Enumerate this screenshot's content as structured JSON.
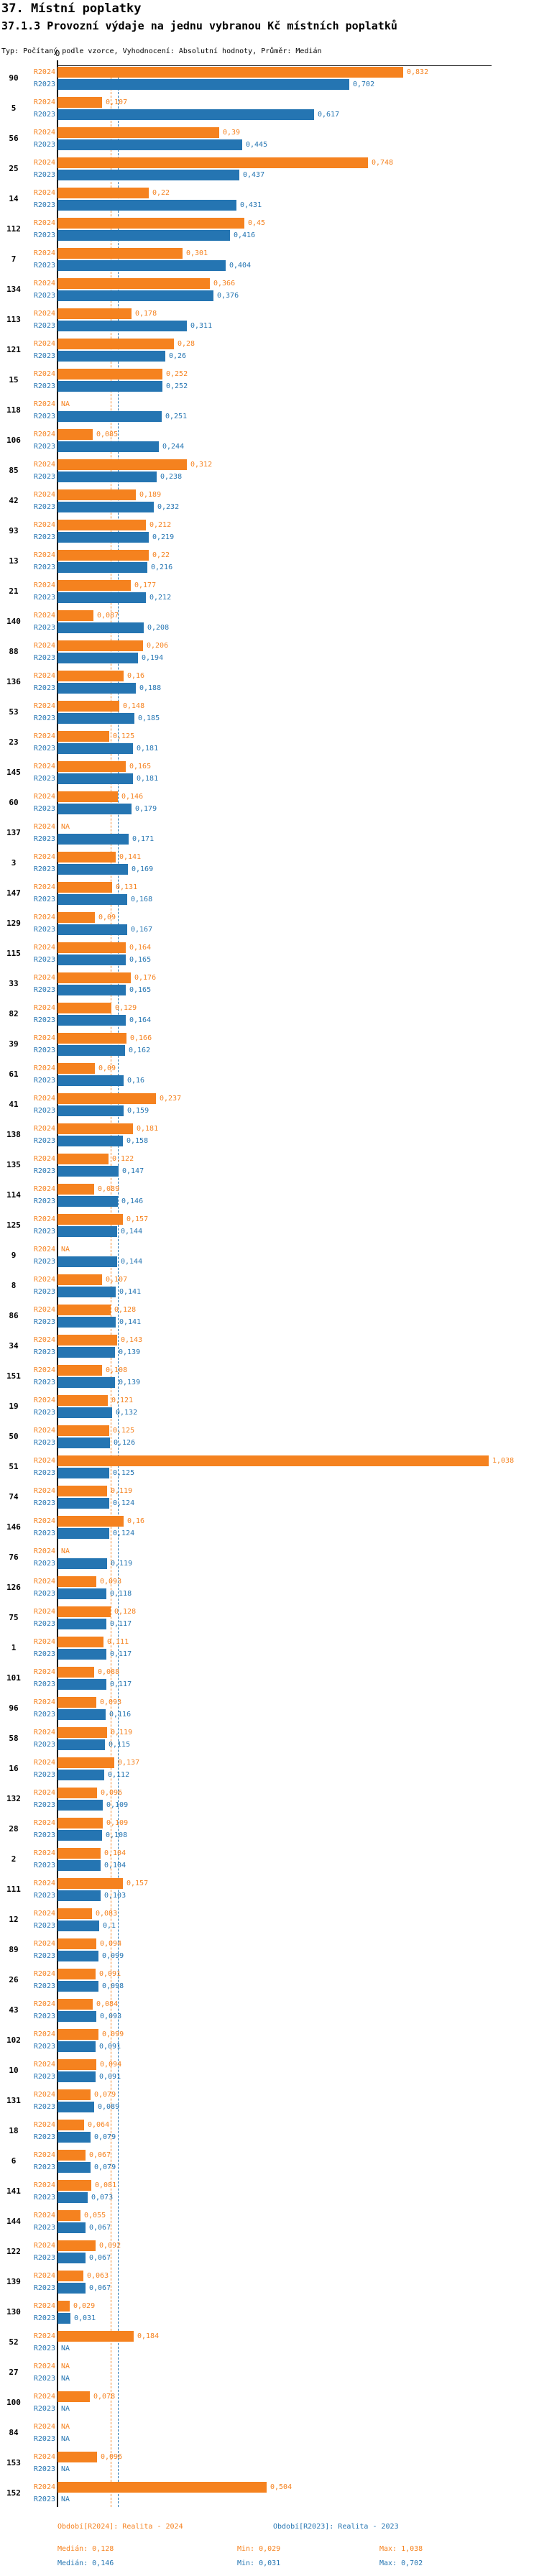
{
  "header": {
    "title": "37. Místní poplatky",
    "subtitle": "37.1.3 Provozní výdaje na jednu vybranou Kč místních poplatků",
    "meta": "Typ: Počítaný podle vzorce, Vyhodnocení: Absolutní hodnoty, Průměr: Medián"
  },
  "chart_data": {
    "type": "bar",
    "orientation": "horizontal",
    "series_labels": [
      "R2024",
      "R2023"
    ],
    "colors": {
      "R2024": "#F5821F",
      "R2023": "#2575B2"
    },
    "axis": {
      "zero_tick_label": "0",
      "xlim": [
        0,
        1.08
      ],
      "value_format": "czech-comma",
      "na_text": "NA"
    },
    "medians": {
      "R2024": 0.128,
      "R2023": 0.146
    },
    "rows": [
      {
        "id": "90",
        "R2024": "0,832",
        "R2023": "0,702"
      },
      {
        "id": "5",
        "R2024": "0,107",
        "R2023": "0,617"
      },
      {
        "id": "56",
        "R2024": "0,39",
        "R2023": "0,445"
      },
      {
        "id": "25",
        "R2024": "0,748",
        "R2023": "0,437"
      },
      {
        "id": "14",
        "R2024": "0,22",
        "R2023": "0,431"
      },
      {
        "id": "112",
        "R2024": "0,45",
        "R2023": "0,416"
      },
      {
        "id": "7",
        "R2024": "0,301",
        "R2023": "0,404"
      },
      {
        "id": "134",
        "R2024": "0,366",
        "R2023": "0,376"
      },
      {
        "id": "113",
        "R2024": "0,178",
        "R2023": "0,311"
      },
      {
        "id": "121",
        "R2024": "0,28",
        "R2023": "0,26"
      },
      {
        "id": "15",
        "R2024": "0,252",
        "R2023": "0,252"
      },
      {
        "id": "118",
        "R2024": "NA",
        "R2023": "0,251"
      },
      {
        "id": "106",
        "R2024": "0,085",
        "R2023": "0,244"
      },
      {
        "id": "85",
        "R2024": "0,312",
        "R2023": "0,238"
      },
      {
        "id": "42",
        "R2024": "0,189",
        "R2023": "0,232"
      },
      {
        "id": "93",
        "R2024": "0,212",
        "R2023": "0,219"
      },
      {
        "id": "13",
        "R2024": "0,22",
        "R2023": "0,216"
      },
      {
        "id": "21",
        "R2024": "0,177",
        "R2023": "0,212"
      },
      {
        "id": "140",
        "R2024": "0,087",
        "R2023": "0,208"
      },
      {
        "id": "88",
        "R2024": "0,206",
        "R2023": "0,194"
      },
      {
        "id": "136",
        "R2024": "0,16",
        "R2023": "0,188"
      },
      {
        "id": "53",
        "R2024": "0,148",
        "R2023": "0,185"
      },
      {
        "id": "23",
        "R2024": "0,125",
        "R2023": "0,181"
      },
      {
        "id": "145",
        "R2024": "0,165",
        "R2023": "0,181"
      },
      {
        "id": "60",
        "R2024": "0,146",
        "R2023": "0,179"
      },
      {
        "id": "137",
        "R2024": "NA",
        "R2023": "0,171"
      },
      {
        "id": "3",
        "R2024": "0,141",
        "R2023": "0,169"
      },
      {
        "id": "147",
        "R2024": "0,131",
        "R2023": "0,168"
      },
      {
        "id": "129",
        "R2024": "0,09",
        "R2023": "0,167"
      },
      {
        "id": "115",
        "R2024": "0,164",
        "R2023": "0,165"
      },
      {
        "id": "33",
        "R2024": "0,176",
        "R2023": "0,165"
      },
      {
        "id": "82",
        "R2024": "0,129",
        "R2023": "0,164"
      },
      {
        "id": "39",
        "R2024": "0,166",
        "R2023": "0,162"
      },
      {
        "id": "61",
        "R2024": "0,09",
        "R2023": "0,16"
      },
      {
        "id": "41",
        "R2024": "0,237",
        "R2023": "0,159"
      },
      {
        "id": "138",
        "R2024": "0,181",
        "R2023": "0,158"
      },
      {
        "id": "135",
        "R2024": "0,122",
        "R2023": "0,147"
      },
      {
        "id": "114",
        "R2024": "0,089",
        "R2023": "0,146"
      },
      {
        "id": "125",
        "R2024": "0,157",
        "R2023": "0,144"
      },
      {
        "id": "9",
        "R2024": "NA",
        "R2023": "0,144"
      },
      {
        "id": "8",
        "R2024": "0,107",
        "R2023": "0,141"
      },
      {
        "id": "86",
        "R2024": "0,128",
        "R2023": "0,141"
      },
      {
        "id": "34",
        "R2024": "0,143",
        "R2023": "0,139"
      },
      {
        "id": "151",
        "R2024": "0,108",
        "R2023": "0,139"
      },
      {
        "id": "19",
        "R2024": "0,121",
        "R2023": "0,132"
      },
      {
        "id": "50",
        "R2024": "0,125",
        "R2023": "0,126"
      },
      {
        "id": "51",
        "R2024": "1,038",
        "R2023": "0,125"
      },
      {
        "id": "74",
        "R2024": "0,119",
        "R2023": "0,124"
      },
      {
        "id": "146",
        "R2024": "0,16",
        "R2023": "0,124"
      },
      {
        "id": "76",
        "R2024": "NA",
        "R2023": "0,119"
      },
      {
        "id": "126",
        "R2024": "0,093",
        "R2023": "0,118"
      },
      {
        "id": "75",
        "R2024": "0,128",
        "R2023": "0,117"
      },
      {
        "id": "1",
        "R2024": "0,111",
        "R2023": "0,117"
      },
      {
        "id": "101",
        "R2024": "0,088",
        "R2023": "0,117"
      },
      {
        "id": "96",
        "R2024": "0,093",
        "R2023": "0,116"
      },
      {
        "id": "58",
        "R2024": "0,119",
        "R2023": "0,115"
      },
      {
        "id": "16",
        "R2024": "0,137",
        "R2023": "0,112"
      },
      {
        "id": "132",
        "R2024": "0,096",
        "R2023": "0,109"
      },
      {
        "id": "28",
        "R2024": "0,109",
        "R2023": "0,108"
      },
      {
        "id": "2",
        "R2024": "0,104",
        "R2023": "0,104"
      },
      {
        "id": "111",
        "R2024": "0,157",
        "R2023": "0,103"
      },
      {
        "id": "12",
        "R2024": "0,083",
        "R2023": "0,1"
      },
      {
        "id": "89",
        "R2024": "0,094",
        "R2023": "0,099"
      },
      {
        "id": "26",
        "R2024": "0,091",
        "R2023": "0,098"
      },
      {
        "id": "43",
        "R2024": "0,084",
        "R2023": "0,093"
      },
      {
        "id": "102",
        "R2024": "0,099",
        "R2023": "0,091"
      },
      {
        "id": "10",
        "R2024": "0,094",
        "R2023": "0,091"
      },
      {
        "id": "131",
        "R2024": "0,079",
        "R2023": "0,089"
      },
      {
        "id": "18",
        "R2024": "0,064",
        "R2023": "0,079"
      },
      {
        "id": "6",
        "R2024": "0,067",
        "R2023": "0,079"
      },
      {
        "id": "141",
        "R2024": "0,081",
        "R2023": "0,073"
      },
      {
        "id": "144",
        "R2024": "0,055",
        "R2023": "0,067"
      },
      {
        "id": "122",
        "R2024": "0,092",
        "R2023": "0,067"
      },
      {
        "id": "139",
        "R2024": "0,063",
        "R2023": "0,067"
      },
      {
        "id": "130",
        "R2024": "0,029",
        "R2023": "0,031"
      },
      {
        "id": "52",
        "R2024": "0,184",
        "R2023": "NA"
      },
      {
        "id": "27",
        "R2024": "NA",
        "R2023": "NA"
      },
      {
        "id": "100",
        "R2024": "0,078",
        "R2023": "NA"
      },
      {
        "id": "84",
        "R2024": "NA",
        "R2023": "NA"
      },
      {
        "id": "153",
        "R2024": "0,096",
        "R2023": "NA"
      },
      {
        "id": "152",
        "R2024": "0,504",
        "R2023": "NA"
      }
    ]
  },
  "footer": {
    "periods": [
      {
        "series": "R2024",
        "text": "Období[R2024]: Realita - 2024"
      },
      {
        "series": "R2023",
        "text": "Období[R2023]: Realita - 2023"
      }
    ],
    "stats": [
      {
        "series": "R2024",
        "median": "Medián: 0,128",
        "min": "Min: 0,029",
        "max": "Max: 1,038"
      },
      {
        "series": "R2023",
        "median": "Medián: 0,146",
        "min": "Min: 0,031",
        "max": "Max: 0,702"
      }
    ]
  }
}
